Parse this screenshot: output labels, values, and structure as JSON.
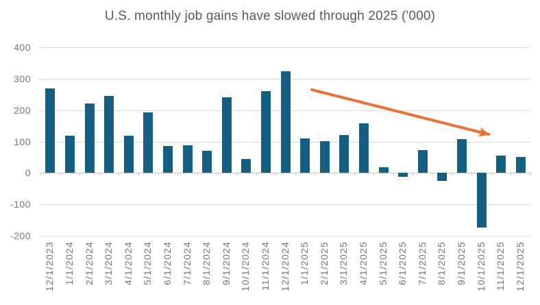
{
  "chart_data": {
    "type": "bar",
    "title": "U.S. monthly job gains have slowed through 2025 ('000)",
    "xlabel": "",
    "ylabel": "",
    "categories": [
      "12/1/2023",
      "1/1/2024",
      "2/1/2024",
      "3/1/2024",
      "4/1/2024",
      "5/1/2024",
      "6/1/2024",
      "7/1/2024",
      "8/1/2024",
      "9/1/2024",
      "10/1/2024",
      "11/1/2024",
      "12/1/2024",
      "1/1/2025",
      "2/1/2025",
      "3/1/2025",
      "4/1/2025",
      "5/1/2025",
      "6/1/2025",
      "7/1/2025",
      "8/1/2025",
      "9/1/2025",
      "10/1/2025",
      "11/1/2025",
      "12/1/2025"
    ],
    "values": [
      269,
      119,
      222,
      246,
      118,
      193,
      87,
      88,
      71,
      240,
      44,
      261,
      323,
      111,
      102,
      120,
      158,
      19,
      -13,
      72,
      -26,
      107,
      -175,
      56,
      50
    ],
    "ylim": [
      -200,
      400
    ],
    "yticks": [
      400,
      300,
      200,
      100,
      0,
      -100,
      -200
    ],
    "grid": true,
    "legend": "none",
    "colors": {
      "bar": "#156082",
      "arrow": "#E97132",
      "gridline": "#d9d9d9",
      "axis": "#c6c6c6",
      "title_text": "#595959",
      "label_text": "#757575"
    },
    "annotation": {
      "type": "trend-arrow",
      "direction": "down-right",
      "from": {
        "x": 13.35,
        "y": 265
      },
      "to": {
        "x": 22.37,
        "y": 123
      }
    }
  }
}
